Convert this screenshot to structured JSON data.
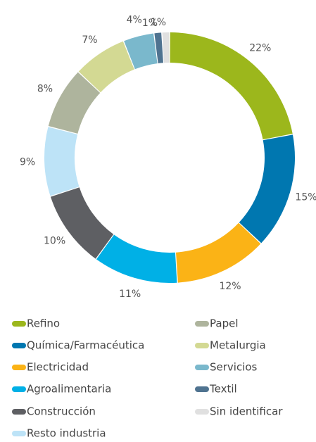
{
  "chart_data": {
    "type": "donut",
    "categories": [
      "Refino",
      "Química/Farmacéutica",
      "Electricidad",
      "Agroalimentaria",
      "Construcción",
      "Resto industria",
      "Papel",
      "Metalurgia",
      "Servicios",
      "Textil",
      "Sin identificar"
    ],
    "values": [
      22,
      15,
      12,
      11,
      10,
      9,
      8,
      7,
      4,
      1,
      1
    ],
    "value_labels": [
      "22%",
      "15%",
      "12%",
      "11%",
      "10%",
      "9%",
      "8%",
      "7%",
      "4%",
      "1%",
      "1%"
    ],
    "colors": [
      "#9cb71c",
      "#0077b0",
      "#fbb316",
      "#00b0e6",
      "#5e5f63",
      "#bde3f7",
      "#aeb49d",
      "#d3d993",
      "#7ab8cc",
      "#4f7390",
      "#e0e0e0"
    ]
  }
}
